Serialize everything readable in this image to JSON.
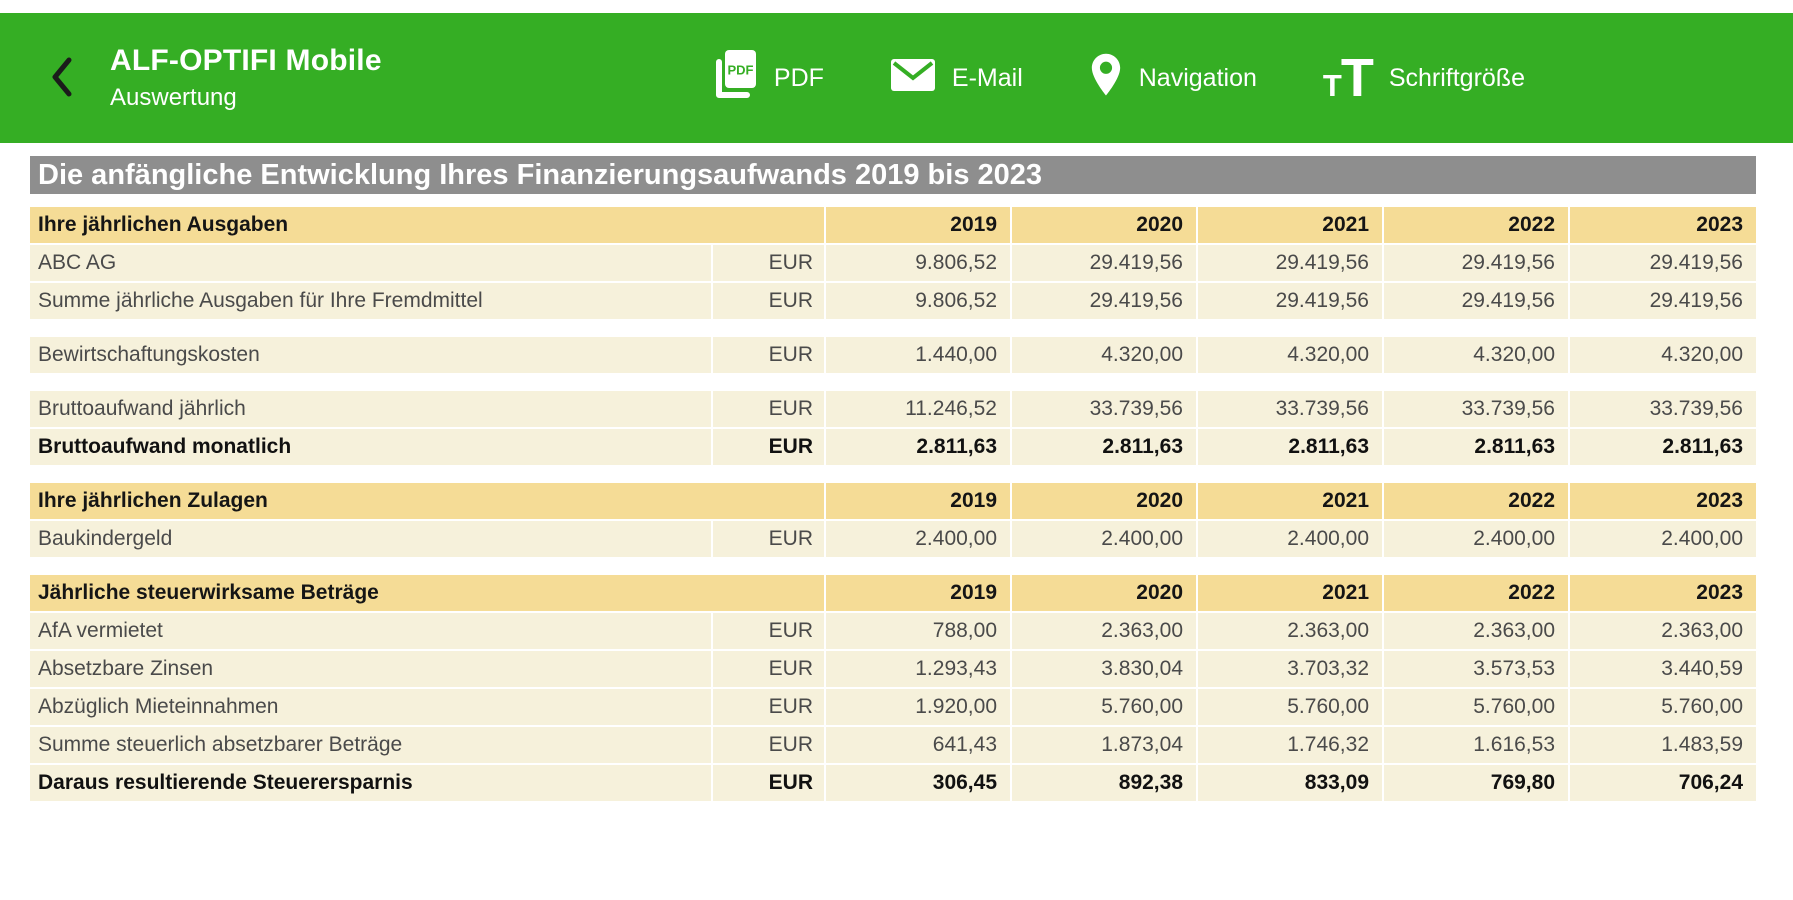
{
  "header": {
    "title": "ALF-OPTIFI Mobile",
    "subtitle": "Auswertung",
    "back_icon": "chevron-left",
    "actions": [
      {
        "id": "pdf",
        "icon": "pdf-icon",
        "label": "PDF"
      },
      {
        "id": "email",
        "icon": "email-icon",
        "label": "E-Mail"
      },
      {
        "id": "navigation",
        "icon": "navigation-pin-icon",
        "label": "Navigation"
      },
      {
        "id": "fontsize",
        "icon": "font-size-icon",
        "label": "Schriftgröße"
      }
    ]
  },
  "page_title": "Die anfängliche Entwicklung Ihres Finanzierungsaufwands 2019 bis 2023",
  "table": {
    "currency_label": "EUR",
    "years": [
      "2019",
      "2020",
      "2021",
      "2022",
      "2023"
    ],
    "sections": [
      {
        "title": "Ihre jährlichen Ausgaben",
        "rows": [
          {
            "label": "ABC AG",
            "values": [
              "9.806,52",
              "29.419,56",
              "29.419,56",
              "29.419,56",
              "29.419,56"
            ]
          },
          {
            "label": "Summe jährliche Ausgaben für Ihre Fremdmittel",
            "values": [
              "9.806,52",
              "29.419,56",
              "29.419,56",
              "29.419,56",
              "29.419,56"
            ]
          },
          {
            "gap": true
          },
          {
            "label": "Bewirtschaftungskosten",
            "values": [
              "1.440,00",
              "4.320,00",
              "4.320,00",
              "4.320,00",
              "4.320,00"
            ]
          },
          {
            "gap": true
          },
          {
            "label": "Bruttoaufwand jährlich",
            "values": [
              "11.246,52",
              "33.739,56",
              "33.739,56",
              "33.739,56",
              "33.739,56"
            ]
          },
          {
            "label": "Bruttoaufwand monatlich",
            "bold": true,
            "values": [
              "2.811,63",
              "2.811,63",
              "2.811,63",
              "2.811,63",
              "2.811,63"
            ]
          }
        ]
      },
      {
        "title": "Ihre jährlichen Zulagen",
        "rows": [
          {
            "label": "Baukindergeld",
            "values": [
              "2.400,00",
              "2.400,00",
              "2.400,00",
              "2.400,00",
              "2.400,00"
            ]
          }
        ]
      },
      {
        "title": "Jährliche steuerwirksame Beträge",
        "rows": [
          {
            "label": "AfA vermietet",
            "values": [
              "788,00",
              "2.363,00",
              "2.363,00",
              "2.363,00",
              "2.363,00"
            ]
          },
          {
            "label": "Absetzbare Zinsen",
            "values": [
              "1.293,43",
              "3.830,04",
              "3.703,32",
              "3.573,53",
              "3.440,59"
            ]
          },
          {
            "label": "Abzüglich Mieteinnahmen",
            "values": [
              "1.920,00",
              "5.760,00",
              "5.760,00",
              "5.760,00",
              "5.760,00"
            ]
          },
          {
            "label": "Summe steuerlich absetzbarer Beträge",
            "values": [
              "641,43",
              "1.873,04",
              "1.746,32",
              "1.616,53",
              "1.483,59"
            ]
          },
          {
            "label": "Daraus resultierende Steuerersparnis",
            "bold": true,
            "values": [
              "306,45",
              "892,38",
              "833,09",
              "769,80",
              "706,24"
            ]
          }
        ]
      }
    ]
  },
  "colors": {
    "app_green": "#35AE24",
    "title_bar_gray": "#8E8E8E",
    "section_header_yellow": "#F5DC96",
    "data_row_cream": "#F6F1DB"
  }
}
